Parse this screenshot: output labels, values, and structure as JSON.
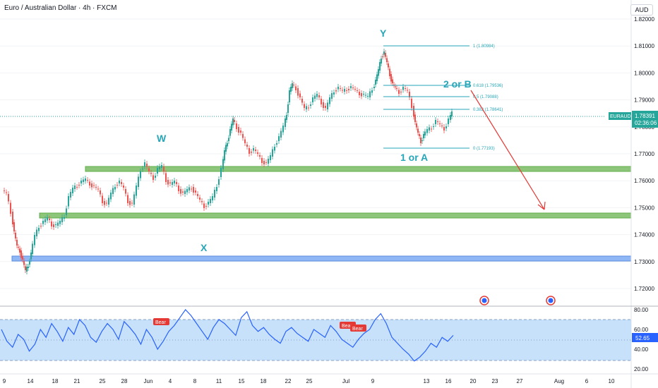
{
  "header": {
    "title": "Euro / Australian Dollar · 4h · FXCM",
    "currency": "AUD"
  },
  "colors": {
    "up": "#26a69a",
    "down": "#ef5350",
    "zone_green": "#8dc67a",
    "zone_blue": "#90b7f5",
    "fib": "#26a6b8",
    "rsi": "#2962ff",
    "rsi_band": "#bcdcf8",
    "arrow": "#e53935",
    "price_label": "#26a69a"
  },
  "price_axis": {
    "ticks": [
      "1.82000",
      "1.81000",
      "1.80000",
      "1.79000",
      "1.78000",
      "1.77000",
      "1.76000",
      "1.75000",
      "1.74000",
      "1.73000",
      "1.72000"
    ]
  },
  "price_label": {
    "symbol": "EURAUD",
    "value": "1.78391",
    "countdown": "02:36:06"
  },
  "rsi_axis": {
    "ticks": [
      "80.00",
      "60.00",
      "40.00",
      "20.00"
    ],
    "current": "52.65"
  },
  "time_axis": {
    "labels": [
      "9",
      "14",
      "18",
      "21",
      "25",
      "28",
      "Jun",
      "4",
      "8",
      "11",
      "15",
      "18",
      "22",
      "25",
      "Jul",
      "9",
      "13",
      "16",
      "20",
      "23",
      "27",
      "Aug",
      "6",
      "10"
    ]
  },
  "wave_labels": {
    "w": "W",
    "x": "X",
    "y": "Y",
    "one_or_a": "1 or A",
    "two_or_b": "2 or B"
  },
  "fib_levels": [
    "1 (1.80984)",
    "0.618 (1.79536)",
    "0.5 (1.79088)",
    "0.382 (1.78641)",
    "0 (1.77193)"
  ],
  "bear_tags": [
    "Bear",
    "Bear",
    "Bear"
  ],
  "event_icons": [
    "calendar-event-icon",
    "calendar-event-icon"
  ]
}
